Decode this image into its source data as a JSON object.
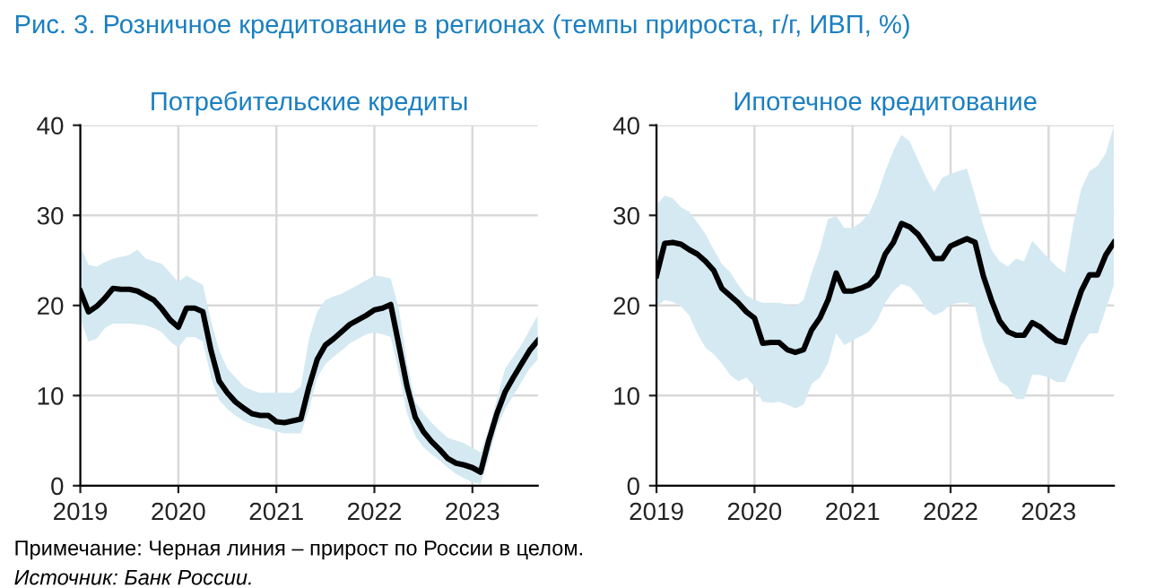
{
  "chart_data": [
    {
      "type": "line",
      "title": "Рис. 3. Розничное кредитование в регионах (темпы прироста, г/г, ИВП, %)",
      "subtitle": "Потребительские кредиты",
      "annotations": [
        "Примечание: Черная линия – прирост по России в целом.",
        "Источник: Банк России."
      ],
      "x": [
        "2019-01",
        "2019-02",
        "2019-03",
        "2019-04",
        "2019-05",
        "2019-06",
        "2019-07",
        "2019-08",
        "2019-09",
        "2019-10",
        "2019-11",
        "2019-12",
        "2020-01",
        "2020-02",
        "2020-03",
        "2020-04",
        "2020-05",
        "2020-06",
        "2020-07",
        "2020-08",
        "2020-09",
        "2020-10",
        "2020-11",
        "2020-12",
        "2021-01",
        "2021-02",
        "2021-03",
        "2021-04",
        "2021-05",
        "2021-06",
        "2021-07",
        "2021-08",
        "2021-09",
        "2021-10",
        "2021-11",
        "2021-12",
        "2022-01",
        "2022-02",
        "2022-03",
        "2022-04",
        "2022-05",
        "2022-06",
        "2022-07",
        "2022-08",
        "2022-09",
        "2022-10",
        "2022-11",
        "2022-12",
        "2023-01",
        "2023-02",
        "2023-03",
        "2023-04",
        "2023-05",
        "2023-06",
        "2023-07",
        "2023-08",
        "2023-09"
      ],
      "series": [
        {
          "color": "#000000",
          "values": [
            21.6,
            19.3,
            19.9,
            20.8,
            21.9,
            21.8,
            21.8,
            21.6,
            21.1,
            20.6,
            19.6,
            18.4,
            17.6,
            19.7,
            19.7,
            19.3,
            15.0,
            11.6,
            10.3,
            9.3,
            8.6,
            8.0,
            7.8,
            7.8,
            7.1,
            7.0,
            7.2,
            7.4,
            11.0,
            14.0,
            15.6,
            16.3,
            17.1,
            17.9,
            18.4,
            18.9,
            19.5,
            19.7,
            20.1,
            15.6,
            11.0,
            7.6,
            6.0,
            4.9,
            4.0,
            3.0,
            2.5,
            2.3,
            2.0,
            1.5,
            5.0,
            8.0,
            10.4,
            12.0,
            13.5,
            15.0,
            16.1
          ],
          "upper": [
            26.6,
            24.5,
            24.3,
            24.8,
            25.2,
            25.4,
            25.6,
            26.2,
            25.2,
            24.9,
            24.6,
            23.6,
            22.6,
            23.3,
            22.8,
            22.3,
            18.3,
            15.0,
            13.0,
            12.0,
            11.0,
            10.6,
            10.3,
            10.3,
            10.3,
            10.3,
            10.3,
            11.0,
            16.3,
            19.3,
            20.6,
            21.0,
            21.3,
            21.8,
            22.3,
            22.8,
            23.3,
            23.2,
            23.0,
            19.6,
            13.6,
            9.3,
            8.1,
            7.0,
            6.1,
            5.3,
            5.0,
            4.7,
            4.2,
            3.7,
            6.3,
            9.6,
            13.0,
            14.3,
            15.6,
            17.3,
            18.9
          ],
          "lower": [
            18.5,
            16.0,
            16.3,
            17.5,
            18.0,
            18.0,
            18.0,
            17.9,
            17.8,
            17.5,
            17.0,
            16.0,
            15.3,
            16.5,
            16.5,
            16.0,
            12.0,
            9.5,
            8.5,
            7.8,
            7.2,
            6.8,
            6.5,
            6.3,
            6.0,
            5.8,
            5.8,
            5.8,
            8.5,
            12.0,
            13.5,
            14.3,
            15.0,
            15.8,
            16.3,
            16.8,
            17.0,
            16.8,
            16.5,
            12.5,
            8.0,
            5.5,
            4.3,
            3.5,
            2.8,
            2.0,
            1.3,
            0.8,
            0.4,
            0.2,
            3.0,
            6.5,
            8.5,
            10.0,
            11.5,
            13.0,
            14.0
          ]
        }
      ],
      "xlim": [
        "2019-01",
        "2023-09"
      ],
      "xticks": [
        {
          "value": "2019-01",
          "label": "2019"
        },
        {
          "value": "2020-01",
          "label": "2020"
        },
        {
          "value": "2021-01",
          "label": "2021"
        },
        {
          "value": "2022-01",
          "label": "2022"
        },
        {
          "value": "2023-01",
          "label": "2023"
        }
      ],
      "ylim": [
        0,
        40
      ],
      "yticks": [
        0,
        10,
        20,
        30,
        40
      ],
      "grid": true,
      "marker": "none",
      "line_style": "solid"
    },
    {
      "type": "line",
      "subtitle": "Ипотечное кредитование",
      "x": [
        "2019-01",
        "2019-02",
        "2019-03",
        "2019-04",
        "2019-05",
        "2019-06",
        "2019-07",
        "2019-08",
        "2019-09",
        "2019-10",
        "2019-11",
        "2019-12",
        "2020-01",
        "2020-02",
        "2020-03",
        "2020-04",
        "2020-05",
        "2020-06",
        "2020-07",
        "2020-08",
        "2020-09",
        "2020-10",
        "2020-11",
        "2020-12",
        "2021-01",
        "2021-02",
        "2021-03",
        "2021-04",
        "2021-05",
        "2021-06",
        "2021-07",
        "2021-08",
        "2021-09",
        "2021-10",
        "2021-11",
        "2021-12",
        "2022-01",
        "2022-02",
        "2022-03",
        "2022-04",
        "2022-05",
        "2022-06",
        "2022-07",
        "2022-08",
        "2022-09",
        "2022-10",
        "2022-11",
        "2022-12",
        "2023-01",
        "2023-02",
        "2023-03",
        "2023-04",
        "2023-05",
        "2023-06",
        "2023-07",
        "2023-08",
        "2023-09"
      ],
      "series": [
        {
          "color": "#000000",
          "values": [
            23.3,
            26.9,
            27.0,
            26.8,
            26.2,
            25.7,
            24.9,
            23.9,
            21.9,
            21.1,
            20.3,
            19.3,
            18.6,
            15.8,
            15.9,
            15.9,
            15.1,
            14.8,
            15.1,
            17.3,
            18.6,
            20.6,
            23.6,
            21.6,
            21.6,
            21.9,
            22.3,
            23.3,
            25.7,
            27.0,
            29.1,
            28.7,
            27.9,
            26.6,
            25.2,
            25.2,
            26.6,
            27.0,
            27.4,
            27.0,
            23.3,
            20.6,
            18.3,
            17.1,
            16.7,
            16.7,
            18.1,
            17.6,
            16.8,
            16.1,
            15.9,
            18.9,
            21.6,
            23.4,
            23.4,
            25.6,
            27.0
          ],
          "upper": [
            31.2,
            32.2,
            31.9,
            30.9,
            30.4,
            29.2,
            27.9,
            26.2,
            24.6,
            23.7,
            22.3,
            21.1,
            20.6,
            20.3,
            20.3,
            20.3,
            20.1,
            19.9,
            20.6,
            23.6,
            26.2,
            29.6,
            29.9,
            28.6,
            28.6,
            29.2,
            30.2,
            32.2,
            34.9,
            37.2,
            38.9,
            38.2,
            36.2,
            34.2,
            32.6,
            34.2,
            34.6,
            34.9,
            35.2,
            32.2,
            28.9,
            26.2,
            24.9,
            24.3,
            25.2,
            24.9,
            27.2,
            26.2,
            25.2,
            24.3,
            23.6,
            28.9,
            32.9,
            34.9,
            35.5,
            36.9,
            39.9
          ],
          "lower": [
            19.9,
            20.6,
            20.4,
            19.9,
            18.9,
            16.9,
            15.3,
            14.6,
            13.6,
            12.3,
            11.6,
            12.0,
            11.0,
            9.3,
            9.2,
            9.3,
            9.0,
            8.6,
            9.0,
            11.3,
            12.0,
            13.6,
            16.9,
            15.6,
            16.1,
            16.6,
            17.1,
            18.3,
            20.3,
            21.6,
            22.4,
            22.1,
            21.1,
            19.6,
            18.9,
            19.3,
            20.1,
            20.3,
            20.3,
            19.9,
            15.9,
            13.6,
            11.6,
            11.0,
            9.6,
            9.6,
            12.3,
            12.3,
            12.0,
            11.5,
            11.5,
            13.6,
            15.6,
            16.9,
            16.9,
            19.6,
            22.3
          ]
        }
      ],
      "xlim": [
        "2019-01",
        "2023-09"
      ],
      "xticks": [
        {
          "value": "2019-01",
          "label": "2019"
        },
        {
          "value": "2020-01",
          "label": "2020"
        },
        {
          "value": "2021-01",
          "label": "2021"
        },
        {
          "value": "2022-01",
          "label": "2022"
        },
        {
          "value": "2023-01",
          "label": "2023"
        }
      ],
      "ylim": [
        0,
        40
      ],
      "yticks": [
        0,
        10,
        20,
        30,
        40
      ],
      "grid": true,
      "marker": "none",
      "line_style": "solid"
    }
  ]
}
